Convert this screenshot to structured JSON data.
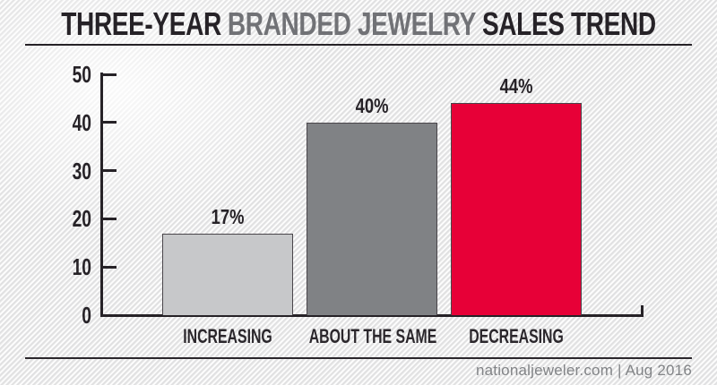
{
  "title": {
    "part1": "THREE-YEAR",
    "part2": "BRANDED JEWELRY",
    "part3": "SALES TREND"
  },
  "chart_data": {
    "type": "bar",
    "title": "Three-Year Branded Jewelry Sales Trend",
    "categories": [
      "INCREASING",
      "ABOUT THE SAME",
      "DECREASING"
    ],
    "values": [
      17,
      40,
      44
    ],
    "value_labels": [
      "17%",
      "40%",
      "44%"
    ],
    "bar_colors": [
      "#c7c8ca",
      "#808285",
      "#e70037"
    ],
    "xlabel": "",
    "ylabel": "",
    "ylim": [
      0,
      50
    ],
    "yticks": [
      50,
      40,
      30,
      20,
      10,
      0
    ],
    "grid": false,
    "legend": "none"
  },
  "footer": {
    "credit": "nationaljeweler.com | Aug 2016"
  },
  "colors": {
    "background": "#ececec",
    "ink": "#262227",
    "title_gray": "#717276",
    "footer_gray": "#828487"
  }
}
